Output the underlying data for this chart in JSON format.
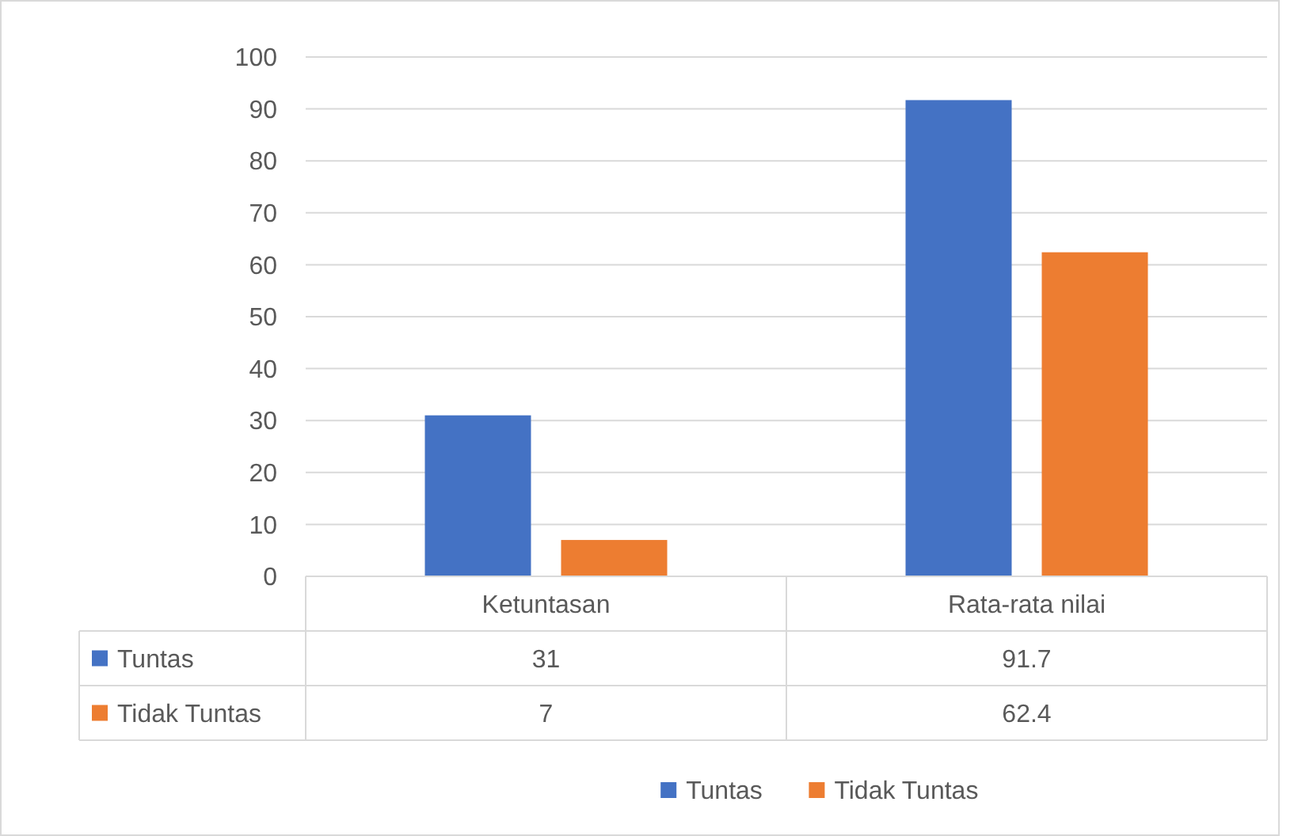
{
  "chart_data": {
    "type": "bar",
    "categories": [
      "Ketuntasan",
      "Rata-rata nilai"
    ],
    "series": [
      {
        "name": "Tuntas",
        "color": "#4472c4",
        "values": [
          31,
          91.7
        ]
      },
      {
        "name": "Tidak Tuntas",
        "color": "#ed7d31",
        "values": [
          7,
          62.4
        ]
      }
    ],
    "ylim": [
      0,
      100
    ],
    "yticks": [
      0,
      10,
      20,
      30,
      40,
      50,
      60,
      70,
      80,
      90,
      100
    ],
    "grid": "y",
    "legend": "bottom",
    "data_labels": true
  }
}
